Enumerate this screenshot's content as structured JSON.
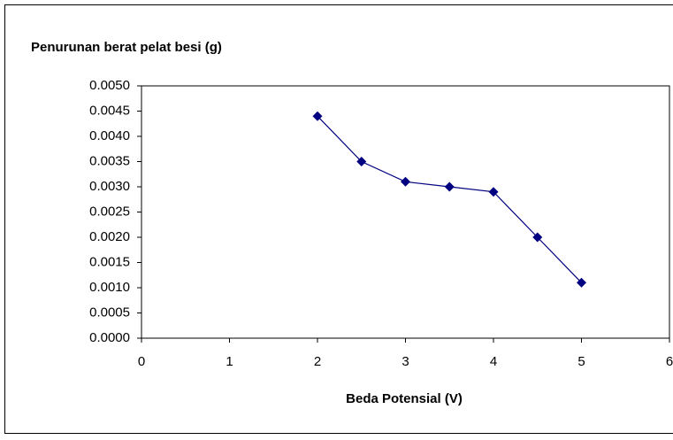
{
  "chart_data": {
    "type": "line",
    "title": "Penurunan berat pelat besi (g)",
    "x_label": "Beda Potensial (V)",
    "x": [
      2,
      2.5,
      3,
      3.5,
      4,
      4.5,
      5
    ],
    "series": [
      {
        "color": "#000080",
        "values": [
          0.0044,
          0.0035,
          0.0031,
          0.003,
          0.0029,
          0.002,
          0.0011
        ]
      }
    ],
    "xlim": [
      0,
      6
    ],
    "xticks": [
      0,
      1,
      2,
      3,
      4,
      5,
      6
    ],
    "ylim": [
      0,
      0.005
    ],
    "yticks": [
      {
        "value": 0,
        "label": "0.0000"
      },
      {
        "value": 0.0005,
        "label": "0.0005"
      },
      {
        "value": 0.001,
        "label": "0.0010"
      },
      {
        "value": 0.0015,
        "label": "0.0015"
      },
      {
        "value": 0.002,
        "label": "0.0020"
      },
      {
        "value": 0.0025,
        "label": "0.0025"
      },
      {
        "value": 0.003,
        "label": "0.0030"
      },
      {
        "value": 0.0035,
        "label": "0.0035"
      },
      {
        "value": 0.004,
        "label": "0.0040"
      },
      {
        "value": 0.0045,
        "label": "0.0045"
      },
      {
        "value": 0.005,
        "label": "0.0050"
      }
    ],
    "grid": false
  }
}
